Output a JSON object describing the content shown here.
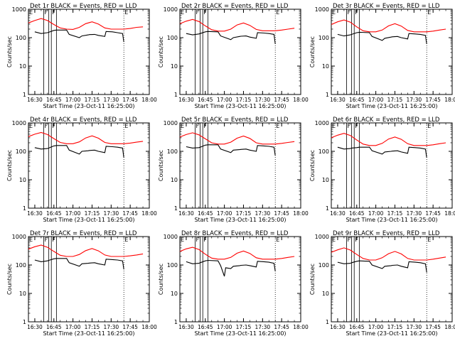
{
  "figure": {
    "ylabel": "Counts/sec",
    "xlabel": "Start Time (23-Oct-11 16:25:00)",
    "x_ticks": [
      "16:30",
      "16:45",
      "17:00",
      "17:15",
      "17:30",
      "17:45",
      "18:00"
    ],
    "y_ticks": [
      "1",
      "10",
      "100",
      "1000"
    ],
    "marker_labels": [
      "E",
      "F",
      "F",
      "E"
    ],
    "colors": {
      "events": "#000000",
      "lld": "#ff0000",
      "axes": "#000000"
    }
  },
  "chart_data": [
    {
      "type": "line",
      "title": "Det 1r BLACK = Events, RED = LLD",
      "x_unit": "minutes after 16:25",
      "xlim": [
        0,
        95
      ],
      "ylim": [
        1,
        1000
      ],
      "y_scale": "log",
      "markers": {
        "E": [
          0,
          75
        ],
        "F": [
          12,
          16,
          18,
          22
        ]
      },
      "series": [
        {
          "name": "Events",
          "color": "#000000",
          "x": [
            5,
            10,
            15,
            16,
            20,
            22,
            30,
            32,
            40,
            42,
            47,
            48,
            52,
            55,
            60,
            61,
            66,
            70,
            74,
            75
          ],
          "y": [
            160,
            140,
            150,
            155,
            180,
            185,
            185,
            130,
            100,
            115,
            125,
            128,
            130,
            120,
            110,
            165,
            160,
            150,
            140,
            70
          ]
        },
        {
          "name": "LLD",
          "color": "#ff0000",
          "x": [
            0,
            5,
            10,
            15,
            20,
            25,
            30,
            35,
            40,
            45,
            50,
            55,
            60,
            65,
            70,
            75,
            80,
            85,
            90
          ],
          "y": [
            330,
            400,
            470,
            400,
            290,
            220,
            200,
            195,
            230,
            310,
            360,
            300,
            220,
            200,
            200,
            200,
            210,
            230,
            240
          ]
        }
      ]
    },
    {
      "type": "line",
      "title": "Det 2r BLACK = Events, RED = LLD",
      "x_unit": "minutes after 16:25",
      "xlim": [
        0,
        95
      ],
      "ylim": [
        1,
        1000
      ],
      "y_scale": "log",
      "markers": {
        "E": [
          0,
          75
        ],
        "F": [
          12,
          16,
          18,
          22
        ]
      },
      "series": [
        {
          "name": "Events",
          "color": "#000000",
          "x": [
            5,
            10,
            15,
            16,
            20,
            22,
            30,
            32,
            40,
            42,
            47,
            48,
            52,
            55,
            60,
            61,
            66,
            70,
            74,
            75
          ],
          "y": [
            140,
            125,
            135,
            140,
            160,
            165,
            160,
            115,
            85,
            100,
            110,
            112,
            115,
            105,
            95,
            150,
            145,
            140,
            130,
            60
          ]
        },
        {
          "name": "LLD",
          "color": "#ff0000",
          "x": [
            0,
            5,
            10,
            15,
            20,
            25,
            30,
            35,
            40,
            45,
            50,
            55,
            60,
            65,
            70,
            75,
            80,
            85,
            90
          ],
          "y": [
            310,
            380,
            440,
            370,
            260,
            190,
            170,
            170,
            200,
            280,
            330,
            270,
            195,
            175,
            175,
            175,
            185,
            200,
            215
          ]
        }
      ]
    },
    {
      "type": "line",
      "title": "Det 3r BLACK = Events, RED = LLD",
      "x_unit": "minutes after 16:25",
      "xlim": [
        0,
        95
      ],
      "ylim": [
        1,
        1000
      ],
      "y_scale": "log",
      "markers": {
        "E": [
          0,
          75
        ],
        "F": [
          12,
          16,
          18,
          22
        ]
      },
      "series": [
        {
          "name": "Events",
          "color": "#000000",
          "x": [
            5,
            10,
            15,
            16,
            20,
            22,
            30,
            32,
            40,
            42,
            47,
            48,
            52,
            55,
            60,
            61,
            66,
            70,
            74,
            75
          ],
          "y": [
            130,
            115,
            125,
            130,
            150,
            155,
            150,
            110,
            80,
            95,
            105,
            107,
            110,
            100,
            90,
            140,
            135,
            130,
            120,
            60
          ]
        },
        {
          "name": "LLD",
          "color": "#ff0000",
          "x": [
            0,
            5,
            10,
            15,
            20,
            25,
            30,
            35,
            40,
            45,
            50,
            55,
            60,
            65,
            70,
            75,
            80,
            85,
            90
          ],
          "y": [
            290,
            360,
            420,
            350,
            240,
            175,
            160,
            160,
            185,
            260,
            310,
            255,
            180,
            160,
            160,
            160,
            170,
            185,
            200
          ]
        }
      ]
    },
    {
      "type": "line",
      "title": "Det 4r BLACK = Events, RED = LLD",
      "x_unit": "minutes after 16:25",
      "xlim": [
        0,
        95
      ],
      "ylim": [
        1,
        1000
      ],
      "y_scale": "log",
      "markers": {
        "E": [
          0,
          75
        ],
        "F": [
          12,
          16,
          18,
          22
        ]
      },
      "series": [
        {
          "name": "Events",
          "color": "#000000",
          "x": [
            5,
            10,
            15,
            16,
            20,
            22,
            30,
            32,
            40,
            42,
            47,
            48,
            52,
            55,
            60,
            61,
            66,
            70,
            74,
            75
          ],
          "y": [
            135,
            120,
            125,
            130,
            155,
            160,
            160,
            110,
            80,
            100,
            105,
            107,
            110,
            100,
            90,
            150,
            145,
            140,
            130,
            60
          ]
        },
        {
          "name": "LLD",
          "color": "#ff0000",
          "x": [
            0,
            5,
            10,
            15,
            20,
            25,
            30,
            35,
            40,
            45,
            50,
            55,
            60,
            65,
            70,
            75,
            80,
            85,
            90
          ],
          "y": [
            330,
            400,
            460,
            390,
            280,
            205,
            185,
            185,
            215,
            295,
            350,
            290,
            205,
            185,
            185,
            185,
            195,
            210,
            225
          ]
        }
      ]
    },
    {
      "type": "line",
      "title": "Det 5r BLACK = Events, RED = LLD",
      "x_unit": "minutes after 16:25",
      "xlim": [
        0,
        95
      ],
      "ylim": [
        1,
        1000
      ],
      "y_scale": "log",
      "markers": {
        "E": [
          0,
          75
        ],
        "F": [
          12,
          16,
          18,
          22
        ]
      },
      "series": [
        {
          "name": "Events",
          "color": "#000000",
          "x": [
            5,
            10,
            15,
            16,
            20,
            22,
            30,
            32,
            40,
            42,
            47,
            48,
            52,
            55,
            60,
            61,
            66,
            70,
            74,
            75
          ],
          "y": [
            145,
            130,
            135,
            140,
            165,
            170,
            170,
            120,
            90,
            110,
            115,
            117,
            120,
            110,
            100,
            160,
            155,
            150,
            140,
            70
          ]
        },
        {
          "name": "LLD",
          "color": "#ff0000",
          "x": [
            0,
            5,
            10,
            15,
            20,
            25,
            30,
            35,
            40,
            45,
            50,
            55,
            60,
            65,
            70,
            75,
            80,
            85,
            90
          ],
          "y": [
            320,
            390,
            450,
            380,
            275,
            200,
            180,
            180,
            210,
            290,
            345,
            285,
            200,
            180,
            180,
            180,
            190,
            205,
            220
          ]
        }
      ]
    },
    {
      "type": "line",
      "title": "Det 6r BLACK = Events, RED = LLD",
      "x_unit": "minutes after 16:25",
      "xlim": [
        0,
        95
      ],
      "ylim": [
        1,
        1000
      ],
      "y_scale": "log",
      "markers": {
        "E": [
          0,
          75
        ],
        "F": [
          12,
          16,
          18,
          22
        ]
      },
      "series": [
        {
          "name": "Events",
          "color": "#000000",
          "x": [
            5,
            10,
            15,
            16,
            20,
            22,
            30,
            32,
            40,
            42,
            47,
            48,
            52,
            55,
            60,
            61,
            66,
            70,
            74,
            75
          ],
          "y": [
            140,
            120,
            125,
            130,
            135,
            140,
            140,
            105,
            80,
            95,
            100,
            102,
            105,
            95,
            85,
            140,
            135,
            130,
            120,
            60
          ]
        },
        {
          "name": "LLD",
          "color": "#ff0000",
          "x": [
            0,
            5,
            10,
            15,
            20,
            25,
            30,
            35,
            40,
            45,
            50,
            55,
            60,
            65,
            70,
            75,
            80,
            85,
            90
          ],
          "y": [
            300,
            370,
            430,
            360,
            250,
            180,
            160,
            160,
            190,
            270,
            320,
            265,
            185,
            160,
            160,
            160,
            170,
            185,
            200
          ]
        }
      ]
    },
    {
      "type": "line",
      "title": "Det 7r BLACK = Events, RED = LLD",
      "x_unit": "minutes after 16:25",
      "xlim": [
        0,
        95
      ],
      "ylim": [
        1,
        1000
      ],
      "y_scale": "log",
      "markers": {
        "E": [
          0,
          75
        ],
        "F": [
          12,
          16,
          18,
          22
        ]
      },
      "series": [
        {
          "name": "Events",
          "color": "#000000",
          "x": [
            5,
            10,
            15,
            16,
            20,
            22,
            30,
            32,
            40,
            42,
            47,
            48,
            52,
            55,
            60,
            61,
            66,
            70,
            74,
            75
          ],
          "y": [
            150,
            130,
            140,
            145,
            165,
            170,
            170,
            120,
            90,
            110,
            115,
            117,
            120,
            110,
            100,
            160,
            155,
            150,
            140,
            70
          ]
        },
        {
          "name": "LLD",
          "color": "#ff0000",
          "x": [
            0,
            5,
            10,
            15,
            20,
            25,
            30,
            35,
            40,
            45,
            50,
            55,
            60,
            65,
            70,
            75,
            80,
            85,
            90
          ],
          "y": [
            360,
            440,
            500,
            420,
            300,
            220,
            200,
            200,
            235,
            320,
            380,
            315,
            225,
            200,
            200,
            200,
            210,
            225,
            245
          ]
        }
      ]
    },
    {
      "type": "line",
      "title": "Det 8r BLACK = Events, RED = LLD",
      "x_unit": "minutes after 16:25",
      "xlim": [
        0,
        95
      ],
      "ylim": [
        1,
        1000
      ],
      "y_scale": "log",
      "markers": {
        "E": [
          0,
          75
        ],
        "F": [
          12,
          16,
          18,
          22
        ]
      },
      "series": [
        {
          "name": "Events",
          "color": "#000000",
          "x": [
            5,
            10,
            15,
            16,
            20,
            22,
            30,
            32,
            35,
            36,
            40,
            42,
            47,
            48,
            52,
            55,
            60,
            61,
            66,
            70,
            74,
            75
          ],
          "y": [
            130,
            110,
            115,
            120,
            140,
            145,
            140,
            95,
            40,
            80,
            75,
            90,
            95,
            97,
            100,
            95,
            85,
            135,
            130,
            125,
            115,
            60
          ]
        },
        {
          "name": "LLD",
          "color": "#ff0000",
          "x": [
            0,
            5,
            10,
            15,
            20,
            25,
            30,
            35,
            40,
            45,
            50,
            55,
            60,
            65,
            70,
            75,
            80,
            85,
            90
          ],
          "y": [
            300,
            370,
            420,
            350,
            240,
            175,
            160,
            160,
            185,
            260,
            310,
            255,
            180,
            160,
            160,
            160,
            170,
            185,
            200
          ]
        }
      ]
    },
    {
      "type": "line",
      "title": "Det 9r BLACK = Events, RED = LLD",
      "x_unit": "minutes after 16:25",
      "xlim": [
        0,
        95
      ],
      "ylim": [
        1,
        1000
      ],
      "y_scale": "log",
      "markers": {
        "E": [
          0,
          75
        ],
        "F": [
          12,
          16,
          18,
          22
        ]
      },
      "series": [
        {
          "name": "Events",
          "color": "#000000",
          "x": [
            5,
            10,
            15,
            16,
            20,
            22,
            30,
            32,
            40,
            42,
            47,
            48,
            52,
            55,
            60,
            61,
            66,
            70,
            74,
            75
          ],
          "y": [
            125,
            110,
            115,
            120,
            135,
            140,
            135,
            100,
            75,
            90,
            95,
            97,
            100,
            90,
            80,
            130,
            125,
            120,
            110,
            55
          ]
        },
        {
          "name": "LLD",
          "color": "#ff0000",
          "x": [
            0,
            5,
            10,
            15,
            20,
            25,
            30,
            35,
            40,
            45,
            50,
            55,
            60,
            65,
            70,
            75,
            80,
            85,
            90
          ],
          "y": [
            280,
            340,
            400,
            335,
            235,
            170,
            150,
            150,
            180,
            250,
            300,
            245,
            170,
            150,
            150,
            150,
            160,
            175,
            190
          ]
        }
      ]
    }
  ]
}
